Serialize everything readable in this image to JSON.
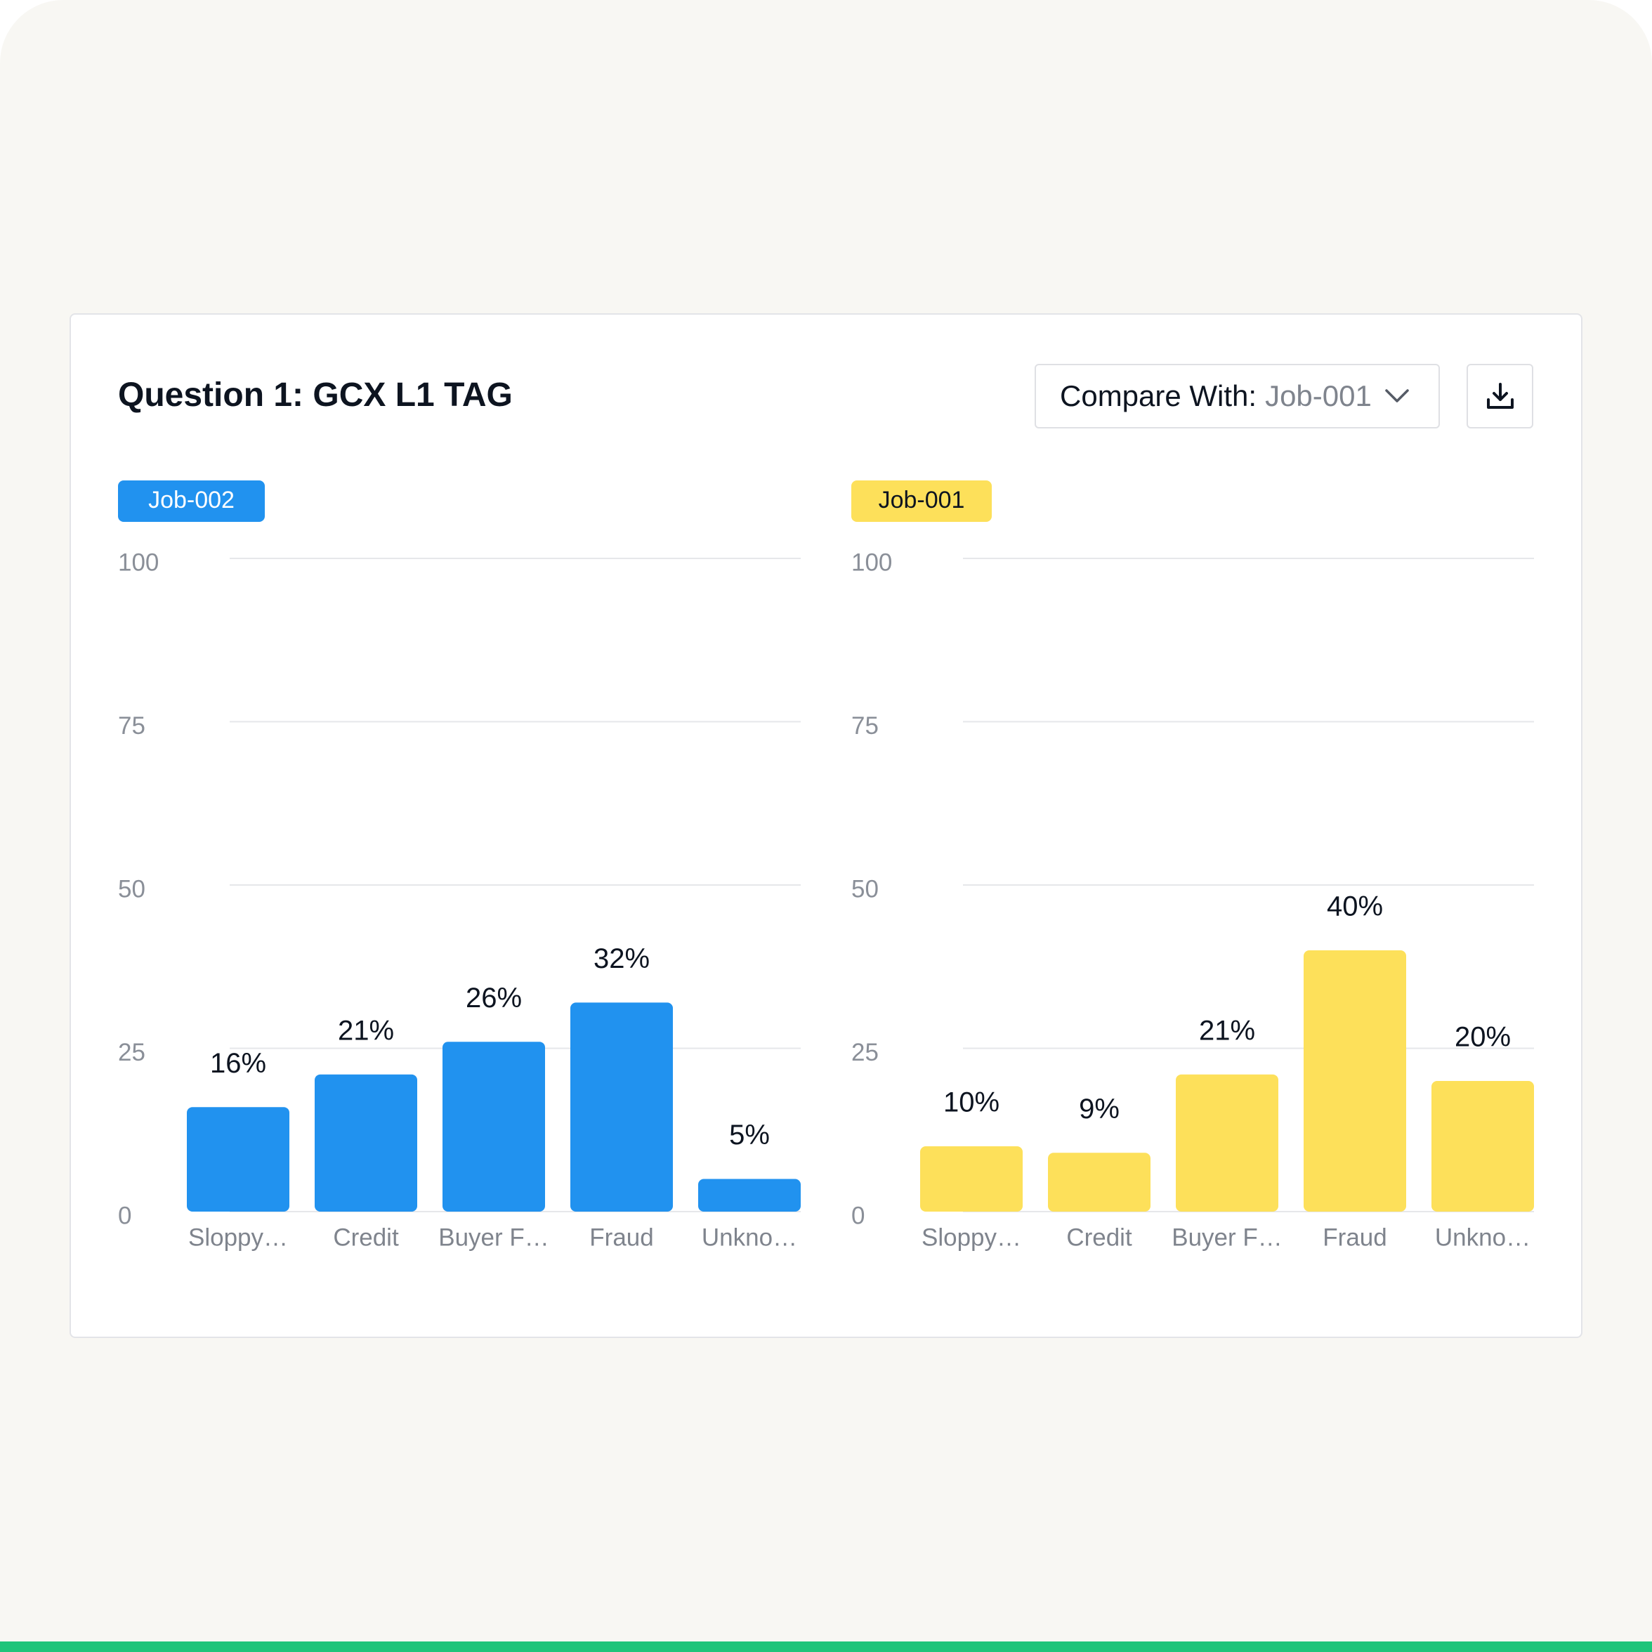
{
  "header": {
    "title": "Question 1: GCX L1 TAG",
    "compare_label": "Compare With:",
    "compare_value": "Job-001"
  },
  "chart_data": [
    {
      "type": "bar",
      "title": "Job-002",
      "color": "#2192ef",
      "categories": [
        "Sloppy…",
        "Credit",
        "Buyer F…",
        "Fraud",
        "Unkno…"
      ],
      "values": [
        16,
        21,
        26,
        32,
        5
      ],
      "value_labels": [
        "16%",
        "21%",
        "26%",
        "32%",
        "5%"
      ],
      "ylim": [
        0,
        100
      ],
      "yticks": [
        0,
        25,
        50,
        75,
        100
      ],
      "grid": true
    },
    {
      "type": "bar",
      "title": "Job-001",
      "color": "#fde05a",
      "categories": [
        "Sloppy…",
        "Credit",
        "Buyer F…",
        "Fraud",
        "Unkno…"
      ],
      "values": [
        10,
        9,
        21,
        40,
        20
      ],
      "value_labels": [
        "10%",
        "9%",
        "21%",
        "40%",
        "20%"
      ],
      "ylim": [
        0,
        100
      ],
      "yticks": [
        0,
        25,
        50,
        75,
        100
      ],
      "grid": true
    }
  ]
}
